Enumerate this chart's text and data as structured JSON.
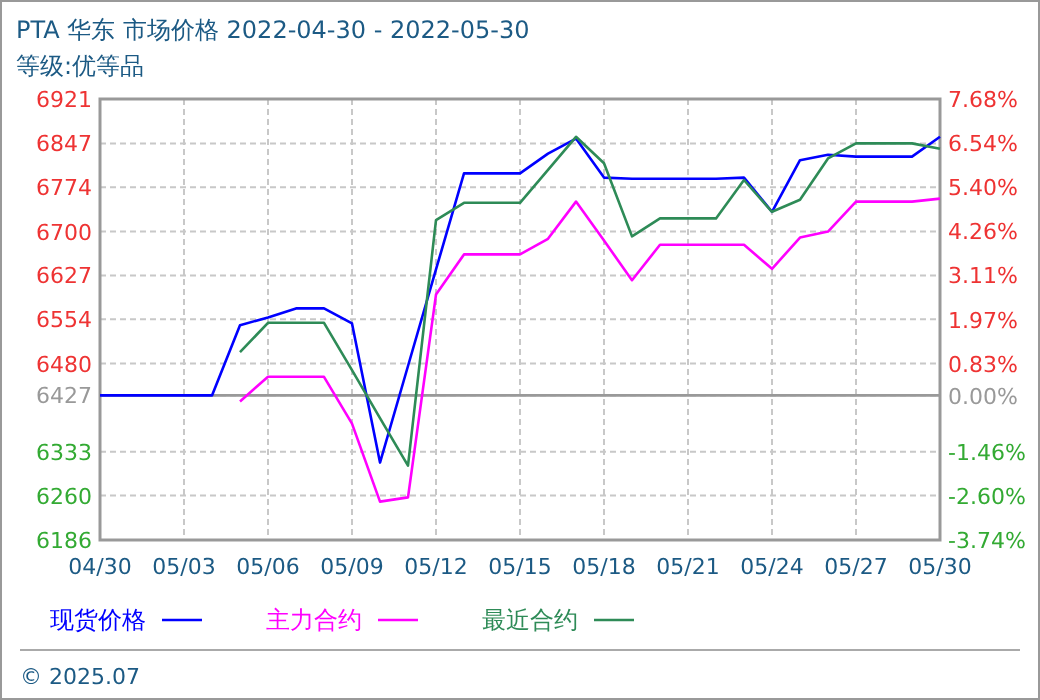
{
  "chart_data": {
    "type": "line",
    "title": "PTA 华东 市场价格 2022-04-30 - 2022-05-30",
    "subtitle": "等级:优等品",
    "x": [
      "2022-04-30",
      "2022-05-01",
      "2022-05-02",
      "2022-05-03",
      "2022-05-04",
      "2022-05-05",
      "2022-05-06",
      "2022-05-07",
      "2022-05-08",
      "2022-05-09",
      "2022-05-10",
      "2022-05-11",
      "2022-05-12",
      "2022-05-13",
      "2022-05-14",
      "2022-05-15",
      "2022-05-16",
      "2022-05-17",
      "2022-05-18",
      "2022-05-19",
      "2022-05-20",
      "2022-05-21",
      "2022-05-22",
      "2022-05-23",
      "2022-05-24",
      "2022-05-25",
      "2022-05-26",
      "2022-05-27",
      "2022-05-28",
      "2022-05-29",
      "2022-05-30"
    ],
    "series": [
      {
        "name": "现货价格",
        "color": "#0000ff",
        "values": [
          6427,
          6427,
          6427,
          6427,
          6427,
          6544,
          6557,
          6572,
          6572,
          6547,
          6315,
          6476,
          6637,
          6797,
          6797,
          6797,
          6830,
          6855,
          6790,
          6788,
          6788,
          6788,
          6788,
          6790,
          6733,
          6819,
          6828,
          6825,
          6825,
          6825,
          6858
        ]
      },
      {
        "name": "主力合约",
        "color": "#ff00ff",
        "values": [
          null,
          null,
          null,
          null,
          null,
          6417,
          6458,
          6458,
          6458,
          6380,
          6250,
          6257,
          6595,
          6662,
          6662,
          6662,
          6688,
          6750,
          6685,
          6619,
          6678,
          6678,
          6678,
          6678,
          6638,
          6690,
          6700,
          6750,
          6750,
          6750,
          6755
        ]
      },
      {
        "name": "最近合约",
        "color": "#2e8b57",
        "values": [
          null,
          null,
          null,
          null,
          null,
          6499,
          6548,
          6548,
          6548,
          6469,
          6389,
          6310,
          6719,
          6748,
          6748,
          6748,
          6803,
          6858,
          6814,
          6692,
          6722,
          6722,
          6722,
          6786,
          6733,
          6753,
          6822,
          6847,
          6847,
          6847,
          6838
        ]
      }
    ],
    "xlim": [
      "2022-04-30",
      "2022-05-30"
    ],
    "xticks": [
      {
        "value": "2022-04-30",
        "label": "04/30"
      },
      {
        "value": "2022-05-03",
        "label": "05/03"
      },
      {
        "value": "2022-05-06",
        "label": "05/06"
      },
      {
        "value": "2022-05-09",
        "label": "05/09"
      },
      {
        "value": "2022-05-12",
        "label": "05/12"
      },
      {
        "value": "2022-05-15",
        "label": "05/15"
      },
      {
        "value": "2022-05-18",
        "label": "05/18"
      },
      {
        "value": "2022-05-21",
        "label": "05/21"
      },
      {
        "value": "2022-05-24",
        "label": "05/24"
      },
      {
        "value": "2022-05-27",
        "label": "05/27"
      },
      {
        "value": "2022-05-30",
        "label": "05/30"
      }
    ],
    "ylim": [
      6186,
      6921
    ],
    "yticks": [
      6921,
      6847,
      6774,
      6700,
      6627,
      6554,
      6480,
      6427,
      6333,
      6260,
      6186
    ],
    "y2lim": [
      -3.74,
      7.68
    ],
    "y2ticks": [
      {
        "value": 7.68,
        "label": "7.68%"
      },
      {
        "value": 6.54,
        "label": "6.54%"
      },
      {
        "value": 5.4,
        "label": "5.40%"
      },
      {
        "value": 4.26,
        "label": "4.26%"
      },
      {
        "value": 3.11,
        "label": "3.11%"
      },
      {
        "value": 1.97,
        "label": "1.97%"
      },
      {
        "value": 0.83,
        "label": "0.83%"
      },
      {
        "value": 0,
        "label": "0.00%"
      },
      {
        "value": -1.46,
        "label": "-1.46%"
      },
      {
        "value": -2.6,
        "label": "-2.60%"
      },
      {
        "value": -3.74,
        "label": "-3.74%"
      }
    ],
    "ref_lines": [
      {
        "axis": "y",
        "value": 6427,
        "color": "#999999"
      }
    ],
    "grid": true,
    "legend": "bottom",
    "annotations": [
      "© 2025.07"
    ]
  }
}
